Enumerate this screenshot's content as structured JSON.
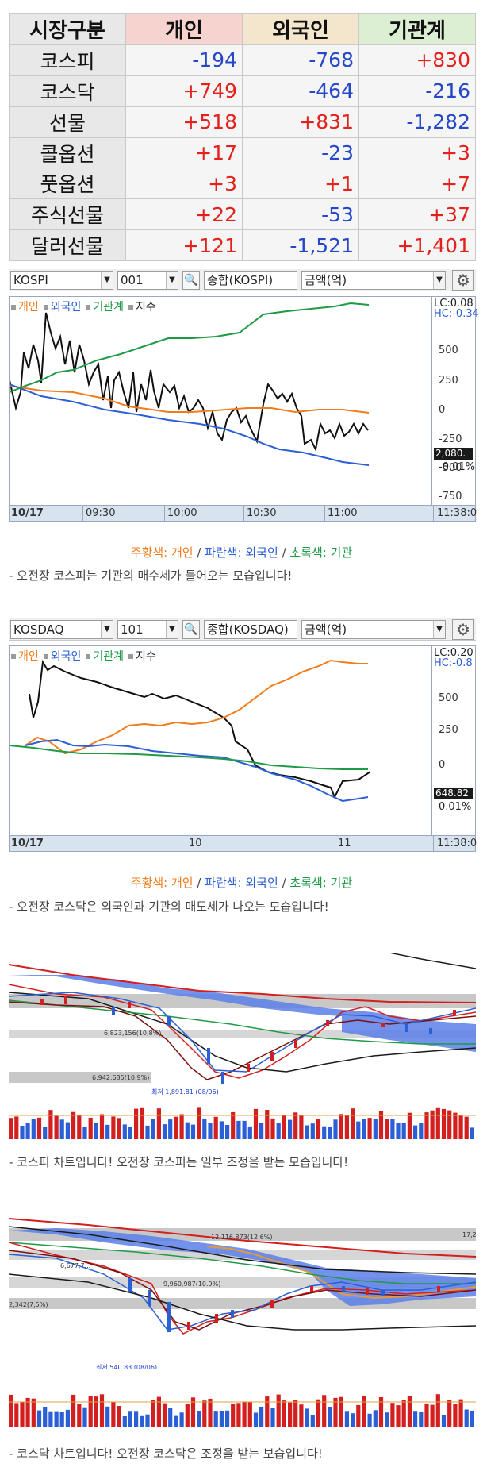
{
  "summary": {
    "headers": [
      "시장구분",
      "개인",
      "외국인",
      "기관계"
    ],
    "rows": [
      {
        "market": "코스피",
        "individual": "-194",
        "foreign": "-768",
        "institution": "+830"
      },
      {
        "market": "코스닥",
        "individual": "+749",
        "foreign": "-464",
        "institution": "-216"
      },
      {
        "market": "선물",
        "individual": "+518",
        "foreign": "+831",
        "institution": "-1,282"
      },
      {
        "market": "콜옵션",
        "individual": "+17",
        "foreign": "-23",
        "institution": "+3"
      },
      {
        "market": "풋옵션",
        "individual": "+3",
        "foreign": "+1",
        "institution": "+7"
      },
      {
        "market": "주식선물",
        "individual": "+22",
        "foreign": "-53",
        "institution": "+37"
      },
      {
        "market": "달러선물",
        "individual": "+121",
        "foreign": "-1,521",
        "institution": "+1,401"
      }
    ]
  },
  "kospi_chart": {
    "market_select": "KOSPI",
    "code_select": "001",
    "search_icon": "magnifier-icon",
    "category_select": "종합(KOSPI)",
    "unit_select": "금액(억)",
    "gear_icon": "gear-icon",
    "legend": [
      "개인",
      "외국인",
      "기관계",
      "지수"
    ],
    "lc": "LC:0.08",
    "hc": "HC:-0.34",
    "y_ticks": [
      "500",
      "250",
      "0",
      "-250",
      "-500",
      "-750"
    ],
    "index_box": "2,080.",
    "index_pct": "-0.01%",
    "x_ticks": [
      "10/17",
      "09:30",
      "10:00",
      "10:30",
      "11:00",
      "11:38:0"
    ],
    "colors": {
      "individual": "#f07c1d",
      "foreign": "#2b5fd6",
      "institution": "#1f9a46",
      "index": "#111111"
    }
  },
  "caption1": {
    "ind": "주황색: 개인",
    "sep1": " / ",
    "for": "파란색: 외국인",
    "sep2": " / ",
    "ins": "초록색: 기관"
  },
  "note1": "- 오전장 코스피는 기관의 매수세가 들어오는 모습입니다!",
  "kosdaq_chart": {
    "market_select": "KOSDAQ",
    "code_select": "101",
    "search_icon": "magnifier-icon",
    "category_select": "종합(KOSDAQ)",
    "unit_select": "금액(억)",
    "gear_icon": "gear-icon",
    "legend": [
      "개인",
      "외국인",
      "기관계",
      "지수"
    ],
    "lc": "LC:0.20",
    "hc": "HC:-0.8",
    "y_ticks": [
      "500",
      "250",
      "0"
    ],
    "index_box": "648.82",
    "index_pct": "0.01%",
    "x_ticks": [
      "10/17",
      "10",
      "11",
      "11:38:0"
    ]
  },
  "caption2": {
    "ind": "주황색: 개인",
    "sep1": " / ",
    "for": "파란색: 외국인",
    "sep2": " / ",
    "ins": "초록색: 기관"
  },
  "note2": "- 오전장 코스닥은 외국인과 기관의 매도세가 나오는 모습입니다!",
  "kospi_candle": {
    "labels": [
      "6,942,685(10.9%)",
      "6,823,156(10,8%)"
    ],
    "low_label": "최저 1,891.81 (08/06)"
  },
  "note3": "- 코스피 차트입니다! 오전장 코스피는 일부 조정을 받는 모습입니다!",
  "kosdaq_candle": {
    "labels": [
      "12,116,873(12.6%)",
      "9,960,987(10.9%)",
      "6,677,7..."
    ],
    "left_label": "2,342(7,5%)",
    "right_label": "17,2",
    "low_label": "최저 540.83 (08/06)"
  },
  "note4": "- 코스닥 차트입니다! 오전장 코스닥은 조정을 받는 보습입니다!"
}
